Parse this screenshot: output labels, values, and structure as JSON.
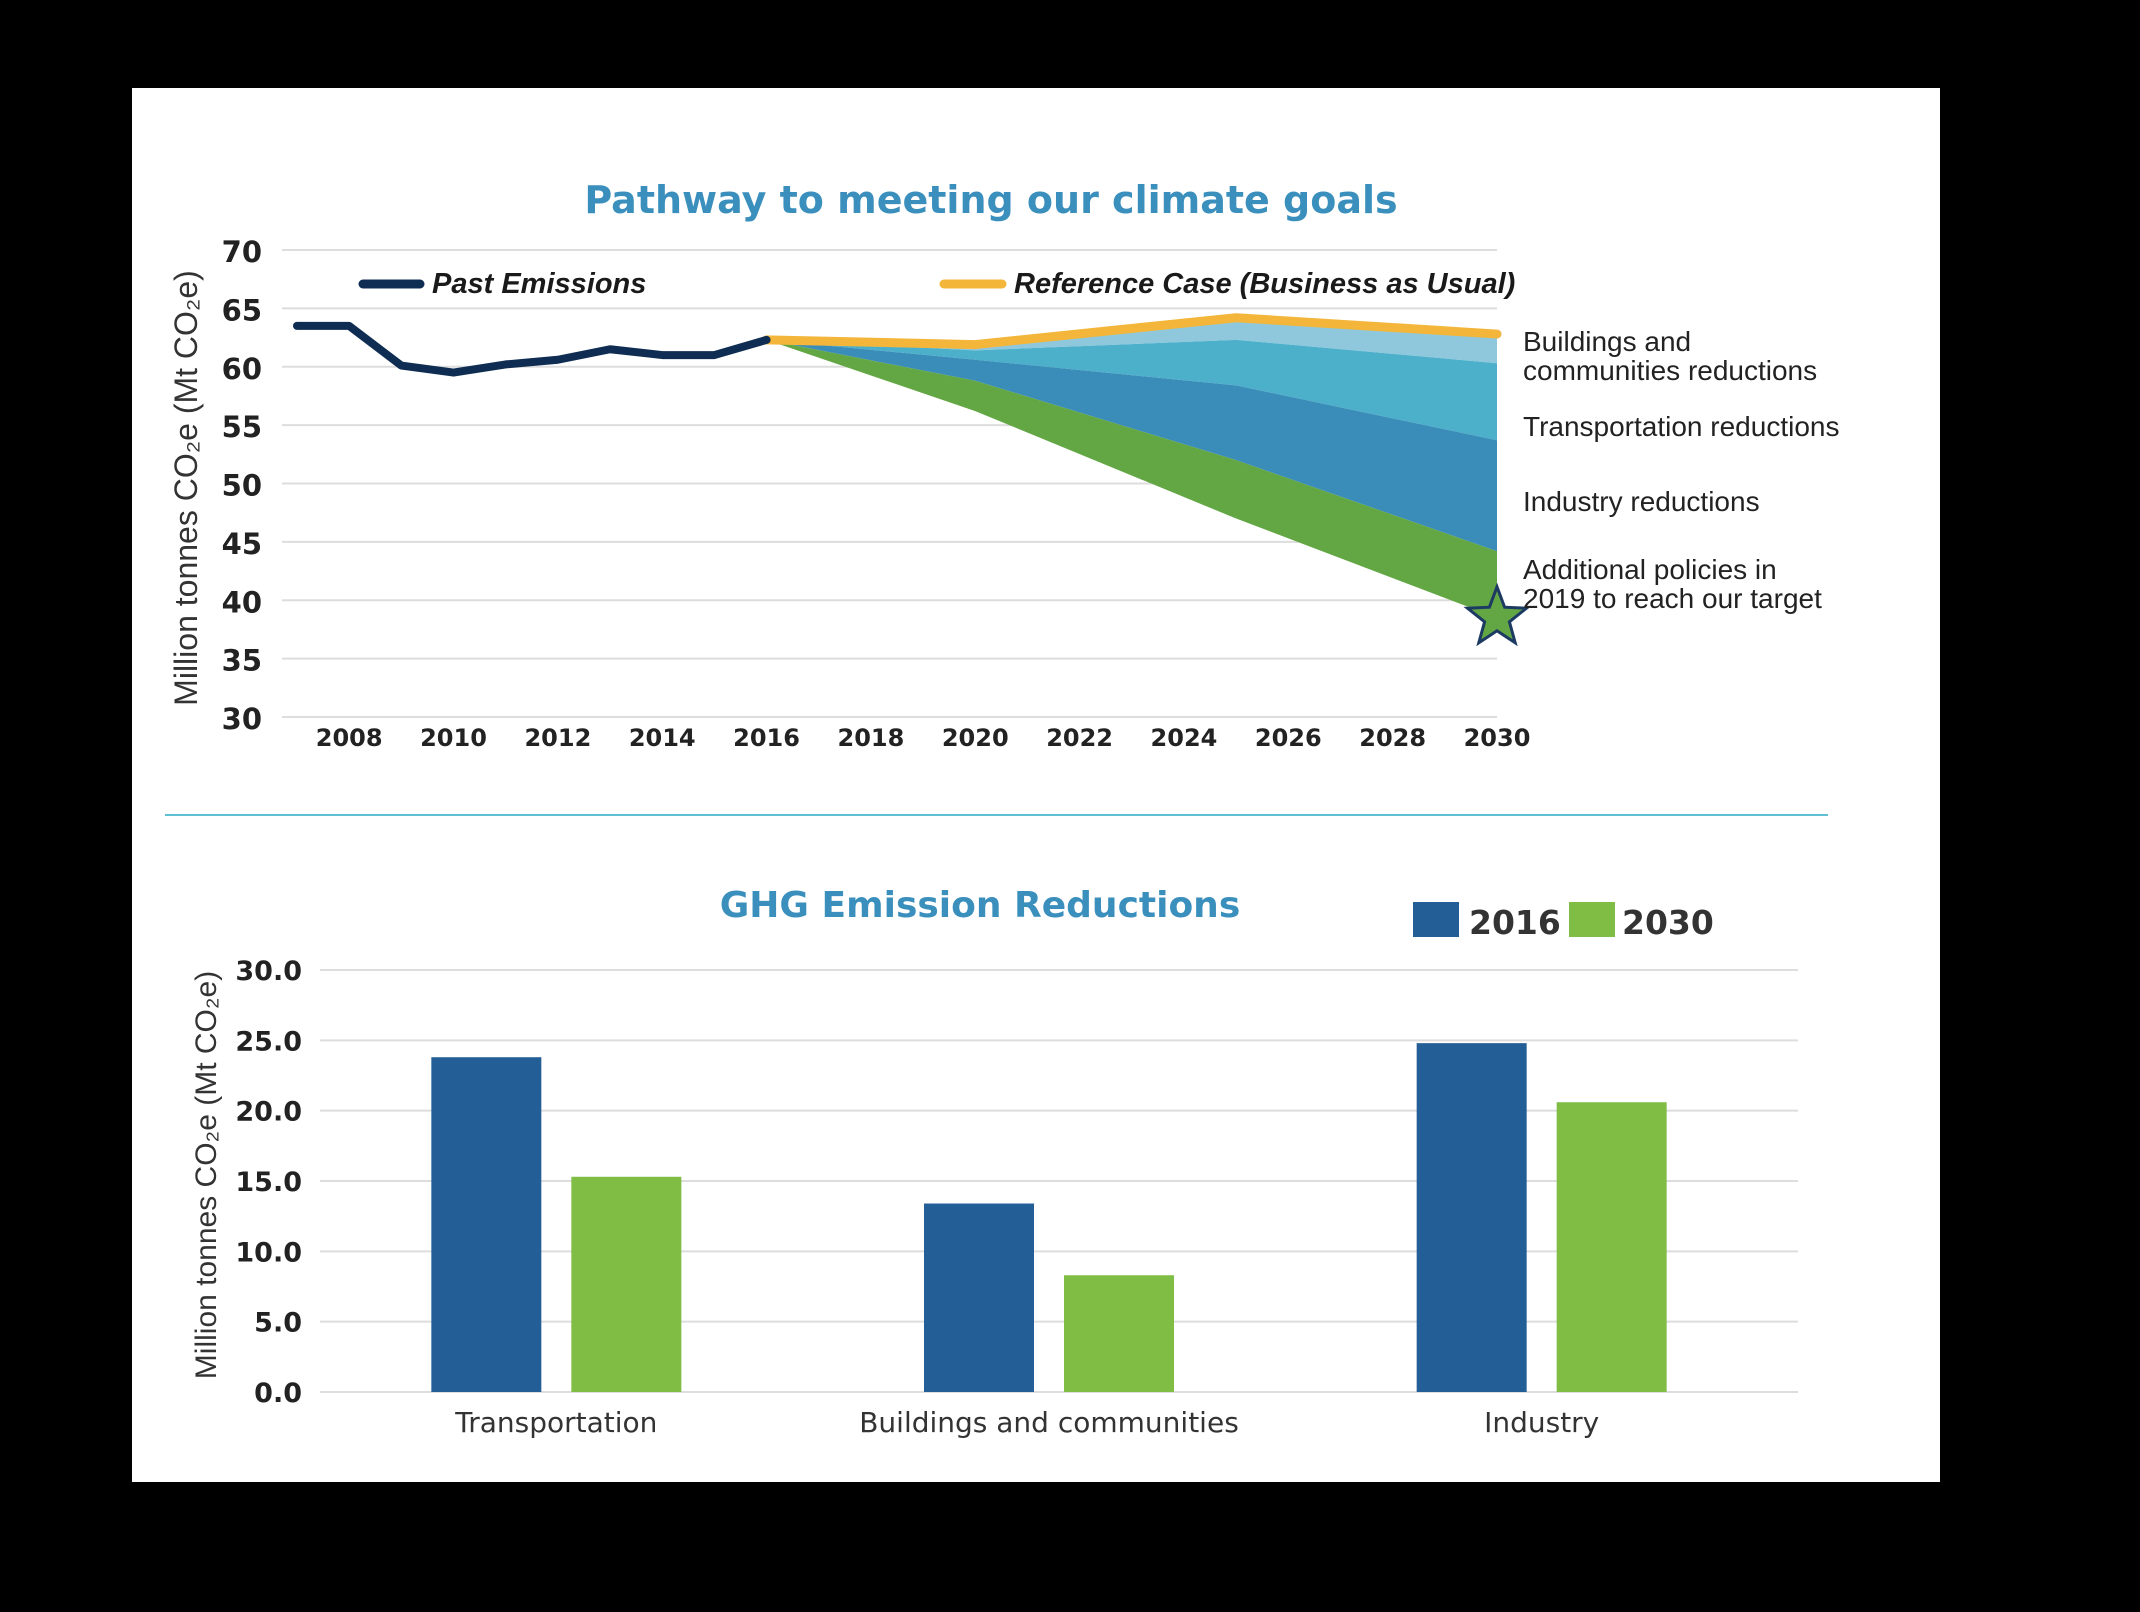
{
  "colors": {
    "panel": "#ffffff",
    "title": "#3a8fbd",
    "past": "#0f2d52",
    "reference": "#f3b63a",
    "buildings": "#8fc8dc",
    "transportation": "#4cb0cb",
    "industry": "#3a8db8",
    "additional": "#63a744",
    "star": "#63a744",
    "bar2016": "#245e97",
    "bar2030": "#7fbd44",
    "divider": "#5fbfd3",
    "grid": "#dddddd"
  },
  "chart_data": [
    {
      "type": "area",
      "title": "Pathway to meeting our climate goals",
      "ylabel": "Million tonnes CO₂e (Mt CO₂e)",
      "xlabel": "",
      "ylim": [
        30,
        70
      ],
      "xlim": [
        2007,
        2030
      ],
      "yticks": [
        "30",
        "35",
        "40",
        "45",
        "50",
        "55",
        "60",
        "65",
        "70"
      ],
      "xticks": [
        "2008",
        "2010",
        "2012",
        "2014",
        "2016",
        "2018",
        "2020",
        "2022",
        "2024",
        "2026",
        "2028",
        "2030"
      ],
      "grid": true,
      "legend": [
        "Past Emissions",
        "Reference Case (Business as Usual)"
      ],
      "past_emissions": {
        "name": "Past Emissions",
        "x": [
          2007,
          2008,
          2009,
          2010,
          2011,
          2012,
          2013,
          2014,
          2015,
          2016
        ],
        "y": [
          63.5,
          63.5,
          60.1,
          59.5,
          60.2,
          60.6,
          61.5,
          61.0,
          61.0,
          62.3
        ]
      },
      "reference_case": {
        "name": "Reference Case (Business as Usual)",
        "x": [
          2016,
          2020,
          2025,
          2030
        ],
        "y": [
          62.3,
          61.9,
          64.2,
          62.8
        ]
      },
      "reduction_bands": {
        "x": [
          2016,
          2020,
          2025,
          2030
        ],
        "bounds": [
          {
            "name": "after-buildings",
            "y": [
              62.3,
              61.4,
              62.3,
              60.3
            ]
          },
          {
            "name": "after-transportation",
            "y": [
              62.3,
              60.6,
              58.4,
              53.7
            ]
          },
          {
            "name": "after-industry",
            "y": [
              62.3,
              58.8,
              52.0,
              44.2
            ]
          },
          {
            "name": "target",
            "y": [
              62.3,
              56.2,
              47.0,
              38.5
            ]
          }
        ],
        "labels": [
          {
            "key": "buildings",
            "lines": [
              "Buildings and",
              "communities reductions"
            ]
          },
          {
            "key": "transportation",
            "lines": [
              "Transportation reductions"
            ]
          },
          {
            "key": "industry",
            "lines": [
              "Industry reductions"
            ]
          },
          {
            "key": "additional",
            "lines": [
              "Additional policies in",
              "2019 to reach our target"
            ]
          }
        ]
      },
      "target_marker": {
        "x": 2030,
        "y": 38.5,
        "shape": "star"
      }
    },
    {
      "type": "bar",
      "title": "GHG Emission Reductions",
      "ylabel": "Million tonnes CO₂e (Mt CO₂e)",
      "xlabel": "",
      "ylim": [
        0,
        30
      ],
      "yticks": [
        "0.0",
        "5.0",
        "10.0",
        "15.0",
        "20.0",
        "25.0",
        "30.0"
      ],
      "grid": true,
      "legend_position": "top-right",
      "categories": [
        "Transportation",
        "Buildings and communities",
        "Industry"
      ],
      "series": [
        {
          "name": "2016",
          "values": [
            23.8,
            13.4,
            24.8
          ]
        },
        {
          "name": "2030",
          "values": [
            15.3,
            8.3,
            20.6
          ]
        }
      ]
    }
  ]
}
